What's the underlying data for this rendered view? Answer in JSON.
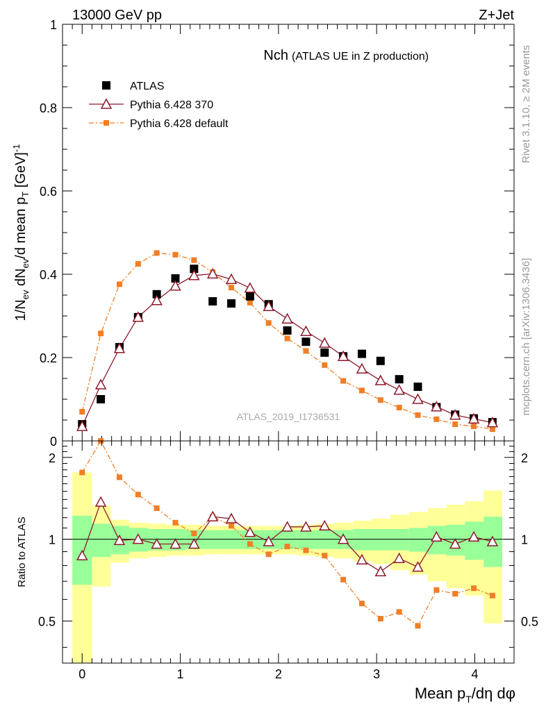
{
  "header": {
    "energy_label": "13000 GeV pp",
    "process_label": "Z+Jet"
  },
  "side_labels": {
    "rivet": "Rivet 3.1.10, ≥ 2M events",
    "mcplots": "mcplots.cern.ch [arXiv:1306.3436]"
  },
  "chart_data": [
    {
      "type": "scatter",
      "panel": "main",
      "title": "Nch",
      "subtitle": "(ATLAS UE in Z production)",
      "analysis_id": "ATLAS_2019_I1736531",
      "ylabel": "1/N_ev dN_ev/d mean p_T [GeV]^-1",
      "xlim": [
        -0.2,
        4.4
      ],
      "ylim": [
        0,
        1
      ],
      "y_ticks": [
        0,
        0.2,
        0.4,
        0.6,
        0.8,
        1
      ],
      "y_tick_labels": [
        "0",
        "0.2",
        "0.4",
        "0.6",
        "0.8",
        "1"
      ],
      "legend_position": "top-left",
      "x": [
        0.0,
        0.19,
        0.38,
        0.57,
        0.76,
        0.95,
        1.14,
        1.33,
        1.52,
        1.71,
        1.9,
        2.09,
        2.28,
        2.47,
        2.66,
        2.85,
        3.04,
        3.23,
        3.42,
        3.61,
        3.8,
        3.99,
        4.18
      ],
      "series": [
        {
          "name": "ATLAS",
          "marker": "square",
          "color": "#000000",
          "values": [
            0.04,
            0.1,
            0.225,
            0.297,
            0.352,
            0.39,
            0.413,
            0.335,
            0.33,
            0.347,
            0.328,
            0.265,
            0.238,
            0.212,
            0.203,
            0.209,
            0.192,
            0.148,
            0.13,
            0.081,
            0.063,
            0.054,
            0.045
          ]
        },
        {
          "name": "Pythia 6.428 370",
          "marker": "open-triangle",
          "line": "solid",
          "color": "#8b1a2b",
          "values": [
            0.035,
            0.135,
            0.222,
            0.297,
            0.337,
            0.372,
            0.397,
            0.401,
            0.388,
            0.367,
            0.323,
            0.293,
            0.263,
            0.235,
            0.203,
            0.173,
            0.145,
            0.122,
            0.1,
            0.082,
            0.062,
            0.053,
            0.044
          ]
        },
        {
          "name": "Pythia 6.428 default",
          "marker": "square-small",
          "line": "dash-dot",
          "color": "#f07e26",
          "values": [
            0.07,
            0.258,
            0.376,
            0.425,
            0.451,
            0.447,
            0.434,
            0.405,
            0.368,
            0.332,
            0.283,
            0.246,
            0.216,
            0.182,
            0.144,
            0.121,
            0.098,
            0.08,
            0.062,
            0.052,
            0.04,
            0.035,
            0.028
          ]
        }
      ]
    },
    {
      "type": "line",
      "panel": "ratio",
      "xlabel": "Mean p_T/dη dφ",
      "ylabel": "Ratio to ATLAS",
      "xlim": [
        -0.2,
        4.4
      ],
      "ylim": [
        0.35,
        2.3
      ],
      "y_ticks": [
        0.5,
        1,
        2
      ],
      "y_tick_labels": [
        "0.5",
        "1",
        "2"
      ],
      "x_ticks": [
        0,
        1,
        2,
        3,
        4
      ],
      "x_tick_labels": [
        "0",
        "1",
        "2",
        "3",
        "4"
      ],
      "x": [
        0.0,
        0.19,
        0.38,
        0.57,
        0.76,
        0.95,
        1.14,
        1.33,
        1.52,
        1.71,
        1.9,
        2.09,
        2.28,
        2.47,
        2.66,
        2.85,
        3.04,
        3.23,
        3.42,
        3.61,
        3.8,
        3.99,
        4.18
      ],
      "bands": {
        "edges": [
          -0.1,
          0.1,
          0.29,
          0.48,
          0.67,
          0.86,
          1.05,
          1.24,
          1.43,
          1.62,
          1.81,
          2.0,
          2.19,
          2.38,
          2.57,
          2.76,
          2.95,
          3.14,
          3.33,
          3.52,
          3.71,
          3.9,
          4.09,
          4.28
        ],
        "green_lo": [
          0.68,
          0.86,
          0.88,
          0.9,
          0.91,
          0.91,
          0.92,
          0.92,
          0.92,
          0.92,
          0.92,
          0.92,
          0.92,
          0.92,
          0.92,
          0.91,
          0.91,
          0.91,
          0.9,
          0.88,
          0.87,
          0.84,
          0.79
        ],
        "green_hi": [
          1.22,
          1.14,
          1.12,
          1.1,
          1.09,
          1.09,
          1.08,
          1.08,
          1.08,
          1.08,
          1.08,
          1.08,
          1.08,
          1.08,
          1.08,
          1.09,
          1.09,
          1.09,
          1.1,
          1.12,
          1.13,
          1.16,
          1.21
        ],
        "yellow_lo": [
          0.35,
          0.67,
          0.82,
          0.85,
          0.86,
          0.87,
          0.87,
          0.88,
          0.88,
          0.88,
          0.88,
          0.88,
          0.87,
          0.86,
          0.85,
          0.83,
          0.81,
          0.77,
          0.74,
          0.7,
          0.66,
          0.62,
          0.49
        ],
        "yellow_hi": [
          1.76,
          1.33,
          1.18,
          1.15,
          1.14,
          1.13,
          1.13,
          1.12,
          1.12,
          1.12,
          1.12,
          1.12,
          1.13,
          1.14,
          1.15,
          1.17,
          1.19,
          1.23,
          1.26,
          1.3,
          1.34,
          1.38,
          1.51
        ]
      },
      "series": [
        {
          "name": "Pythia 6.428 370",
          "marker": "open-triangle",
          "line": "solid",
          "color": "#8b1a2b",
          "values": [
            0.87,
            1.37,
            0.99,
            1.0,
            0.96,
            0.96,
            0.96,
            1.21,
            1.19,
            1.06,
            0.98,
            1.11,
            1.11,
            1.12,
            1.0,
            0.84,
            0.76,
            0.85,
            0.79,
            1.02,
            0.96,
            1.02,
            0.98
          ]
        },
        {
          "name": "Pythia 6.428 default",
          "marker": "square-small",
          "line": "dash-dot",
          "color": "#f07e26",
          "values": [
            1.76,
            2.3,
            1.69,
            1.46,
            1.3,
            1.15,
            1.05,
            1.21,
            1.12,
            0.96,
            0.88,
            0.94,
            0.91,
            0.87,
            0.71,
            0.58,
            0.51,
            0.54,
            0.48,
            0.65,
            0.63,
            0.66,
            0.62
          ]
        }
      ]
    }
  ]
}
